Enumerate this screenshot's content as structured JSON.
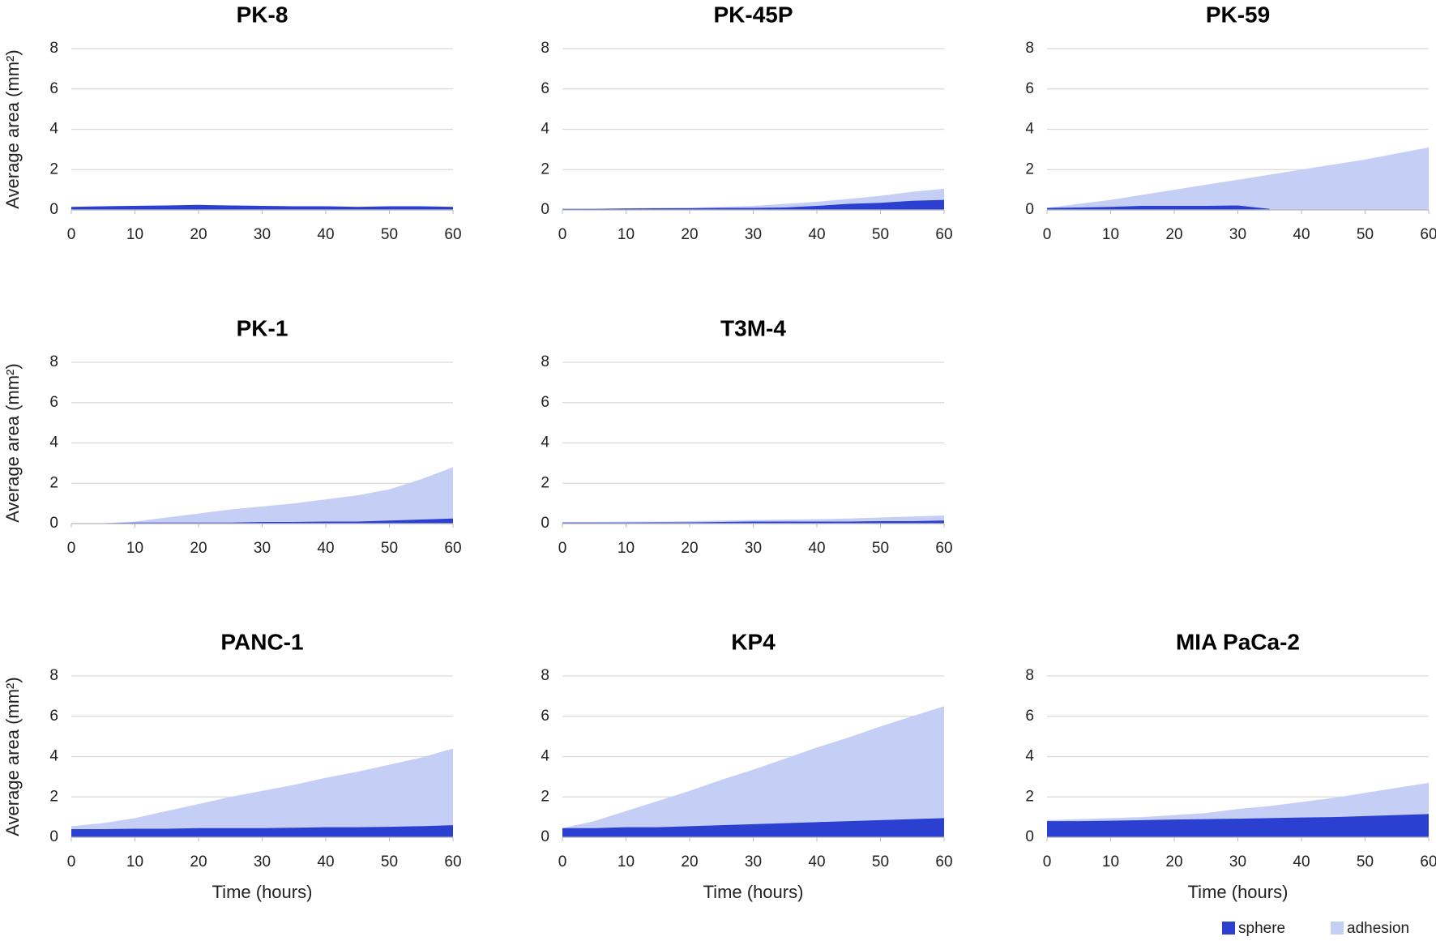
{
  "chart_data": [
    {
      "type": "area",
      "title": "PK-8",
      "ylabel": "Average area (mm²)",
      "x": [
        0,
        5,
        10,
        15,
        20,
        25,
        30,
        35,
        40,
        45,
        50,
        55,
        60
      ],
      "xlim": [
        0,
        60
      ],
      "xticks": [
        0,
        10,
        20,
        30,
        40,
        50,
        60
      ],
      "ylim": [
        0,
        8
      ],
      "yticks": [
        0,
        2,
        4,
        6,
        8
      ],
      "grid": true,
      "legend": "bottom-right",
      "series": [
        {
          "name": "sphere",
          "color": "#2b3fd0",
          "values": [
            0.15,
            0.18,
            0.2,
            0.22,
            0.25,
            0.22,
            0.2,
            0.18,
            0.18,
            0.15,
            0.18,
            0.18,
            0.15
          ]
        },
        {
          "name": "adhesion",
          "color": "#c5cff6",
          "values": [
            0.15,
            0.18,
            0.2,
            0.22,
            0.25,
            0.22,
            0.2,
            0.18,
            0.18,
            0.15,
            0.18,
            0.18,
            0.15
          ]
        }
      ]
    },
    {
      "type": "area",
      "title": "PK-45P",
      "x": [
        0,
        5,
        10,
        15,
        20,
        25,
        30,
        35,
        40,
        45,
        50,
        55,
        60
      ],
      "xlim": [
        0,
        60
      ],
      "xticks": [
        0,
        10,
        20,
        30,
        40,
        50,
        60
      ],
      "ylim": [
        0,
        8
      ],
      "yticks": [
        0,
        2,
        4,
        6,
        8
      ],
      "grid": true,
      "series": [
        {
          "name": "sphere",
          "color": "#2b3fd0",
          "values": [
            0.05,
            0.05,
            0.07,
            0.08,
            0.08,
            0.1,
            0.1,
            0.12,
            0.2,
            0.3,
            0.35,
            0.45,
            0.5
          ]
        },
        {
          "name": "adhesion",
          "color": "#c5cff6",
          "values": [
            0.05,
            0.06,
            0.08,
            0.1,
            0.12,
            0.15,
            0.2,
            0.3,
            0.4,
            0.55,
            0.7,
            0.9,
            1.05
          ]
        }
      ]
    },
    {
      "type": "area",
      "title": "PK-59",
      "x": [
        0,
        5,
        10,
        15,
        20,
        25,
        30,
        35,
        40,
        45,
        50,
        55,
        60
      ],
      "xlim": [
        0,
        60
      ],
      "xticks": [
        0,
        10,
        20,
        30,
        40,
        50,
        60
      ],
      "ylim": [
        0,
        8
      ],
      "yticks": [
        0,
        2,
        4,
        6,
        8
      ],
      "grid": true,
      "series": [
        {
          "name": "sphere",
          "color": "#2b3fd0",
          "values": [
            0.1,
            0.12,
            0.15,
            0.2,
            0.2,
            0.2,
            0.22,
            0.05,
            null,
            null,
            null,
            null,
            null
          ]
        },
        {
          "name": "adhesion",
          "color": "#c5cff6",
          "values": [
            0.1,
            0.3,
            0.5,
            0.75,
            1.0,
            1.25,
            1.5,
            1.75,
            2.0,
            2.25,
            2.5,
            2.8,
            3.1
          ]
        }
      ]
    },
    {
      "type": "area",
      "title": "PK-1",
      "ylabel": "Average area (mm²)",
      "x": [
        0,
        5,
        10,
        15,
        20,
        25,
        30,
        35,
        40,
        45,
        50,
        55,
        60
      ],
      "xlim": [
        0,
        60
      ],
      "xticks": [
        0,
        10,
        20,
        30,
        40,
        50,
        60
      ],
      "ylim": [
        0,
        8
      ],
      "yticks": [
        0,
        2,
        4,
        6,
        8
      ],
      "grid": true,
      "series": [
        {
          "name": "sphere",
          "color": "#2b3fd0",
          "values": [
            null,
            0.02,
            0.05,
            0.05,
            0.05,
            0.05,
            0.08,
            0.08,
            0.1,
            0.1,
            0.15,
            0.2,
            0.25
          ]
        },
        {
          "name": "adhesion",
          "color": "#c5cff6",
          "values": [
            null,
            0.02,
            0.1,
            0.3,
            0.5,
            0.7,
            0.85,
            1.0,
            1.2,
            1.4,
            1.7,
            2.2,
            2.8
          ]
        }
      ]
    },
    {
      "type": "area",
      "title": "T3M-4",
      "x": [
        0,
        5,
        10,
        15,
        20,
        25,
        30,
        35,
        40,
        45,
        50,
        55,
        60
      ],
      "xlim": [
        0,
        60
      ],
      "xticks": [
        0,
        10,
        20,
        30,
        40,
        50,
        60
      ],
      "ylim": [
        0,
        8
      ],
      "yticks": [
        0,
        2,
        4,
        6,
        8
      ],
      "grid": true,
      "series": [
        {
          "name": "sphere",
          "color": "#2b3fd0",
          "values": [
            0.05,
            0.05,
            0.05,
            0.06,
            0.06,
            0.08,
            0.1,
            0.1,
            0.1,
            0.1,
            0.12,
            0.12,
            0.15
          ]
        },
        {
          "name": "adhesion",
          "color": "#c5cff6",
          "values": [
            0.08,
            0.08,
            0.1,
            0.1,
            0.12,
            0.15,
            0.18,
            0.2,
            0.22,
            0.25,
            0.3,
            0.35,
            0.4
          ]
        }
      ]
    },
    {
      "type": "area",
      "title": "PANC-1",
      "ylabel": "Average area (mm²)",
      "xlabel": "Time (hours)",
      "x": [
        0,
        5,
        10,
        15,
        20,
        25,
        30,
        35,
        40,
        45,
        50,
        55,
        60
      ],
      "xlim": [
        0,
        60
      ],
      "xticks": [
        0,
        10,
        20,
        30,
        40,
        50,
        60
      ],
      "ylim": [
        0,
        8
      ],
      "yticks": [
        0,
        2,
        4,
        6,
        8
      ],
      "grid": true,
      "series": [
        {
          "name": "sphere",
          "color": "#2b3fd0",
          "values": [
            0.4,
            0.4,
            0.42,
            0.42,
            0.45,
            0.45,
            0.45,
            0.47,
            0.5,
            0.5,
            0.52,
            0.55,
            0.6
          ]
        },
        {
          "name": "adhesion",
          "color": "#c5cff6",
          "values": [
            0.55,
            0.7,
            0.95,
            1.3,
            1.65,
            2.0,
            2.3,
            2.6,
            2.95,
            3.25,
            3.6,
            3.95,
            4.4
          ]
        }
      ]
    },
    {
      "type": "area",
      "title": "KP4",
      "xlabel": "Time (hours)",
      "x": [
        0,
        5,
        10,
        15,
        20,
        25,
        30,
        35,
        40,
        45,
        50,
        55,
        60
      ],
      "xlim": [
        0,
        60
      ],
      "xticks": [
        0,
        10,
        20,
        30,
        40,
        50,
        60
      ],
      "ylim": [
        0,
        8
      ],
      "yticks": [
        0,
        2,
        4,
        6,
        8
      ],
      "grid": true,
      "series": [
        {
          "name": "sphere",
          "color": "#2b3fd0",
          "values": [
            0.45,
            0.45,
            0.5,
            0.5,
            0.55,
            0.6,
            0.65,
            0.7,
            0.75,
            0.8,
            0.85,
            0.9,
            0.95
          ]
        },
        {
          "name": "adhesion",
          "color": "#c5cff6",
          "values": [
            0.45,
            0.8,
            1.3,
            1.8,
            2.3,
            2.85,
            3.35,
            3.9,
            4.45,
            4.95,
            5.5,
            6.0,
            6.5
          ]
        }
      ]
    },
    {
      "type": "area",
      "title": "MIA PaCa-2",
      "xlabel": "Time (hours)",
      "x": [
        0,
        5,
        10,
        15,
        20,
        25,
        30,
        35,
        40,
        45,
        50,
        55,
        60
      ],
      "xlim": [
        0,
        60
      ],
      "xticks": [
        0,
        10,
        20,
        30,
        40,
        50,
        60
      ],
      "ylim": [
        0,
        8
      ],
      "yticks": [
        0,
        2,
        4,
        6,
        8
      ],
      "grid": true,
      "series": [
        {
          "name": "sphere",
          "color": "#2b3fd0",
          "values": [
            0.8,
            0.8,
            0.82,
            0.85,
            0.88,
            0.9,
            0.92,
            0.95,
            0.98,
            1.0,
            1.05,
            1.1,
            1.15
          ]
        },
        {
          "name": "adhesion",
          "color": "#c5cff6",
          "values": [
            0.85,
            0.9,
            0.95,
            1.0,
            1.1,
            1.2,
            1.4,
            1.55,
            1.75,
            1.95,
            2.2,
            2.45,
            2.7
          ]
        }
      ]
    }
  ]
}
